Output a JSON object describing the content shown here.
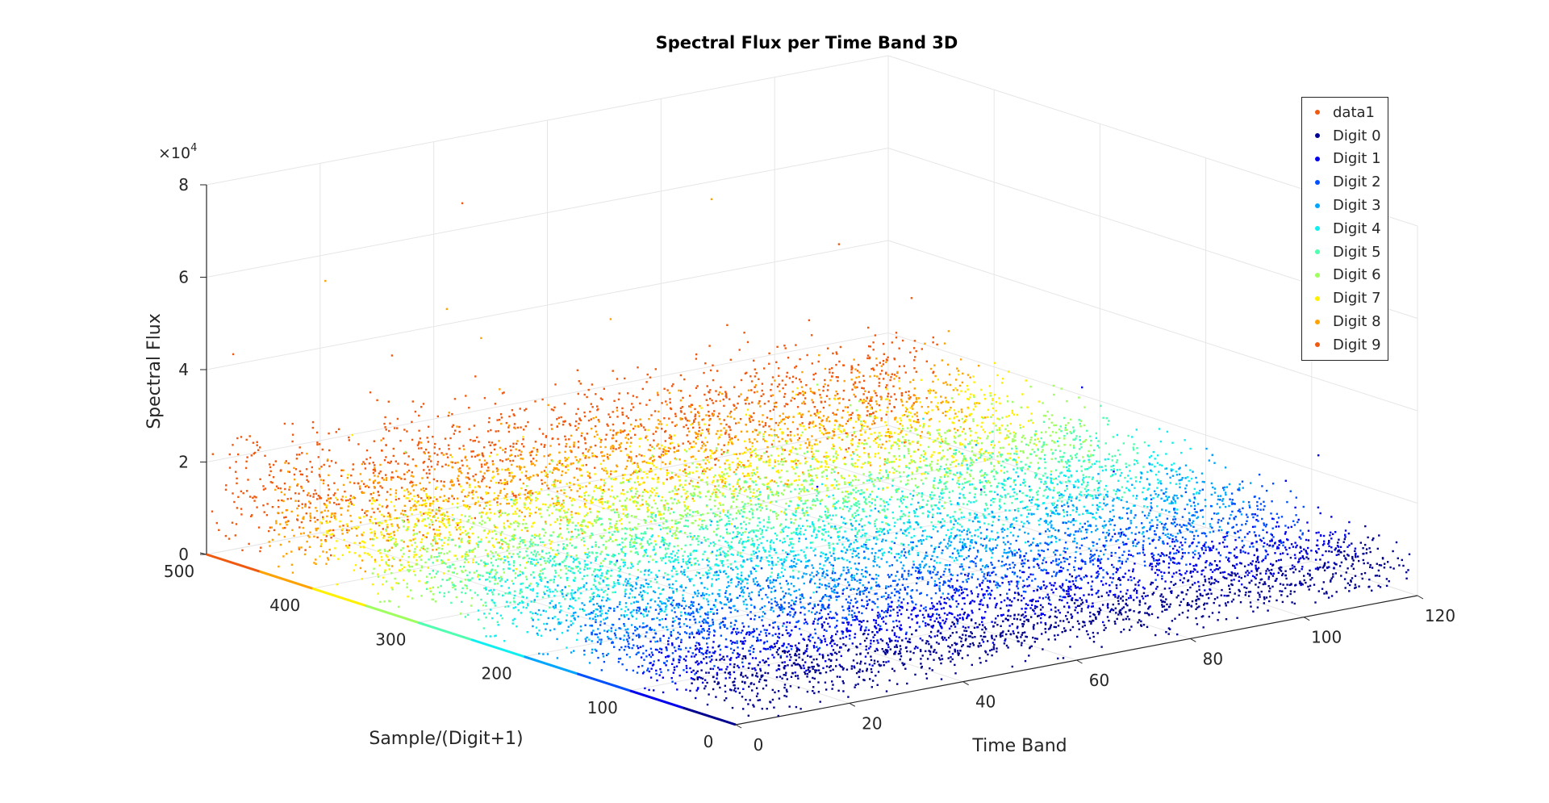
{
  "chart_data": {
    "type": "scatter",
    "title": "Spectral Flux per Time Band 3D",
    "xlabel": "Time Band",
    "ylabel": "Sample/(Digit+1)",
    "zlabel": "Spectral Flux",
    "z_exponent_label": "×10",
    "z_exponent_power": "4",
    "xlim": [
      0,
      120
    ],
    "ylim": [
      0,
      500
    ],
    "zlim": [
      0,
      80000
    ],
    "x_ticks": [
      "0",
      "20",
      "40",
      "60",
      "80",
      "100",
      "120"
    ],
    "y_ticks": [
      "0",
      "100",
      "200",
      "300",
      "400",
      "500"
    ],
    "z_ticks": [
      "0",
      "2",
      "4",
      "6",
      "8"
    ],
    "grid": true,
    "legend_position": "top-right",
    "series": [
      {
        "name": "data1",
        "color": "#f05a10",
        "type": "line along sample axis at zero",
        "y_range": [
          0,
          500
        ]
      },
      {
        "name": "Digit 0",
        "color": "#00008f",
        "y_range": [
          0,
          50
        ],
        "typical_flux": 6000,
        "max_flux": 22000
      },
      {
        "name": "Digit 1",
        "color": "#0000ee",
        "y_range": [
          50,
          100
        ],
        "typical_flux": 7000,
        "max_flux": 50000
      },
      {
        "name": "Digit 2",
        "color": "#0050ff",
        "y_range": [
          100,
          150
        ],
        "typical_flux": 8000,
        "max_flux": 40000
      },
      {
        "name": "Digit 3",
        "color": "#00a5ff",
        "y_range": [
          150,
          200
        ],
        "typical_flux": 9000,
        "max_flux": 30000
      },
      {
        "name": "Digit 4",
        "color": "#10efef",
        "y_range": [
          200,
          250
        ],
        "typical_flux": 10000,
        "max_flux": 32000
      },
      {
        "name": "Digit 5",
        "color": "#4fffaf",
        "y_range": [
          250,
          300
        ],
        "typical_flux": 10000,
        "max_flux": 30000
      },
      {
        "name": "Digit 6",
        "color": "#9fff5f",
        "y_range": [
          300,
          350
        ],
        "typical_flux": 11000,
        "max_flux": 32000
      },
      {
        "name": "Digit 7",
        "color": "#fff000",
        "y_range": [
          350,
          400
        ],
        "typical_flux": 11000,
        "max_flux": 35000
      },
      {
        "name": "Digit 8",
        "color": "#ffa200",
        "y_range": [
          400,
          450
        ],
        "typical_flux": 12000,
        "max_flux": 65000
      },
      {
        "name": "Digit 9",
        "color": "#f05a10",
        "y_range": [
          450,
          500
        ],
        "typical_flux": 13000,
        "max_flux": 70000
      }
    ]
  }
}
